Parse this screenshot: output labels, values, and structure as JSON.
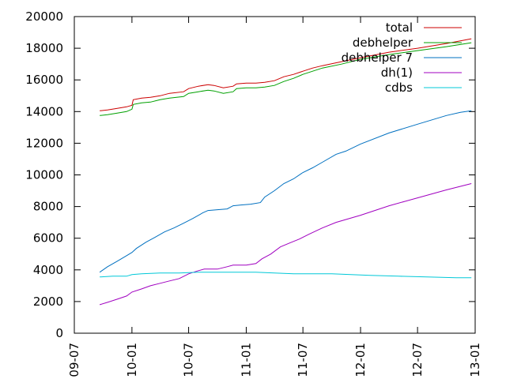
{
  "chart_data": {
    "type": "line",
    "title": "",
    "xlabel": "",
    "ylabel": "",
    "ylim": [
      0,
      20000
    ],
    "xlim": [
      "2009-07-01",
      "2013-01-01"
    ],
    "y_ticks": [
      0,
      2000,
      4000,
      6000,
      8000,
      10000,
      12000,
      14000,
      16000,
      18000,
      20000
    ],
    "x_ticks": [
      {
        "label": "09-07",
        "date": "2009-07-01"
      },
      {
        "label": "10-01",
        "date": "2010-01-01"
      },
      {
        "label": "10-07",
        "date": "2010-07-01"
      },
      {
        "label": "11-01",
        "date": "2011-01-01"
      },
      {
        "label": "11-07",
        "date": "2011-07-01"
      },
      {
        "label": "12-01",
        "date": "2012-01-01"
      },
      {
        "label": "12-07",
        "date": "2012-07-01"
      },
      {
        "label": "13-01",
        "date": "2013-01-01"
      }
    ],
    "grid": false,
    "legend_position": "top-right",
    "series": [
      {
        "name": "total",
        "color": "#cc0000",
        "points": [
          [
            "2009-09-20",
            14050
          ],
          [
            "2009-10-15",
            14100
          ],
          [
            "2009-11-15",
            14200
          ],
          [
            "2009-12-15",
            14300
          ],
          [
            "2010-01-01",
            14400
          ],
          [
            "2010-01-05",
            14750
          ],
          [
            "2010-02-01",
            14850
          ],
          [
            "2010-03-01",
            14900
          ],
          [
            "2010-04-01",
            15000
          ],
          [
            "2010-05-01",
            15150
          ],
          [
            "2010-06-15",
            15250
          ],
          [
            "2010-07-01",
            15450
          ],
          [
            "2010-08-01",
            15600
          ],
          [
            "2010-09-01",
            15700
          ],
          [
            "2010-09-20",
            15650
          ],
          [
            "2010-10-20",
            15500
          ],
          [
            "2010-11-20",
            15600
          ],
          [
            "2010-12-01",
            15750
          ],
          [
            "2011-01-01",
            15800
          ],
          [
            "2011-02-01",
            15800
          ],
          [
            "2011-03-01",
            15850
          ],
          [
            "2011-04-01",
            15950
          ],
          [
            "2011-05-01",
            16200
          ],
          [
            "2011-06-01",
            16350
          ],
          [
            "2011-07-01",
            16550
          ],
          [
            "2011-08-01",
            16750
          ],
          [
            "2011-09-01",
            16900
          ],
          [
            "2011-11-01",
            17150
          ],
          [
            "2012-01-01",
            17400
          ],
          [
            "2012-04-01",
            17750
          ],
          [
            "2012-07-01",
            18000
          ],
          [
            "2012-10-01",
            18300
          ],
          [
            "2012-12-20",
            18600
          ]
        ]
      },
      {
        "name": "debhelper",
        "color": "#00a000",
        "points": [
          [
            "2009-09-20",
            13750
          ],
          [
            "2009-10-15",
            13800
          ],
          [
            "2009-11-15",
            13900
          ],
          [
            "2009-12-15",
            14000
          ],
          [
            "2010-01-01",
            14150
          ],
          [
            "2010-01-05",
            14450
          ],
          [
            "2010-02-01",
            14550
          ],
          [
            "2010-03-01",
            14600
          ],
          [
            "2010-04-01",
            14750
          ],
          [
            "2010-05-01",
            14850
          ],
          [
            "2010-06-15",
            14950
          ],
          [
            "2010-07-01",
            15150
          ],
          [
            "2010-08-01",
            15250
          ],
          [
            "2010-09-01",
            15350
          ],
          [
            "2010-09-20",
            15300
          ],
          [
            "2010-10-20",
            15150
          ],
          [
            "2010-11-20",
            15250
          ],
          [
            "2010-12-01",
            15450
          ],
          [
            "2011-01-01",
            15500
          ],
          [
            "2011-02-01",
            15500
          ],
          [
            "2011-03-01",
            15550
          ],
          [
            "2011-04-01",
            15650
          ],
          [
            "2011-05-01",
            15900
          ],
          [
            "2011-06-01",
            16100
          ],
          [
            "2011-07-01",
            16350
          ],
          [
            "2011-08-01",
            16550
          ],
          [
            "2011-09-01",
            16750
          ],
          [
            "2011-11-01",
            17000
          ],
          [
            "2012-01-01",
            17300
          ],
          [
            "2012-04-01",
            17600
          ],
          [
            "2012-07-01",
            17850
          ],
          [
            "2012-10-01",
            18100
          ],
          [
            "2012-12-20",
            18350
          ]
        ]
      },
      {
        "name": "debhelper 7",
        "color": "#0070c0",
        "points": [
          [
            "2009-09-20",
            3850
          ],
          [
            "2009-10-15",
            4200
          ],
          [
            "2009-11-15",
            4550
          ],
          [
            "2009-12-15",
            4900
          ],
          [
            "2010-01-01",
            5100
          ],
          [
            "2010-01-15",
            5350
          ],
          [
            "2010-02-15",
            5750
          ],
          [
            "2010-03-15",
            6050
          ],
          [
            "2010-04-15",
            6400
          ],
          [
            "2010-05-15",
            6650
          ],
          [
            "2010-06-15",
            6950
          ],
          [
            "2010-07-15",
            7250
          ],
          [
            "2010-08-15",
            7600
          ],
          [
            "2010-09-01",
            7750
          ],
          [
            "2010-10-01",
            7800
          ],
          [
            "2010-11-01",
            7850
          ],
          [
            "2010-11-20",
            8050
          ],
          [
            "2010-12-15",
            8100
          ],
          [
            "2011-01-15",
            8150
          ],
          [
            "2011-02-15",
            8250
          ],
          [
            "2011-03-01",
            8600
          ],
          [
            "2011-04-01",
            9000
          ],
          [
            "2011-05-01",
            9450
          ],
          [
            "2011-06-01",
            9750
          ],
          [
            "2011-07-01",
            10150
          ],
          [
            "2011-08-01",
            10450
          ],
          [
            "2011-09-01",
            10800
          ],
          [
            "2011-10-15",
            11300
          ],
          [
            "2011-11-15",
            11500
          ],
          [
            "2012-01-01",
            11950
          ],
          [
            "2012-04-01",
            12650
          ],
          [
            "2012-07-01",
            13200
          ],
          [
            "2012-10-01",
            13750
          ],
          [
            "2012-11-15",
            13950
          ],
          [
            "2012-12-20",
            14050
          ]
        ]
      },
      {
        "name": "dh(1)",
        "color": "#a000c0",
        "points": [
          [
            "2009-09-20",
            1800
          ],
          [
            "2009-10-15",
            1950
          ],
          [
            "2009-11-15",
            2150
          ],
          [
            "2009-12-15",
            2350
          ],
          [
            "2010-01-01",
            2600
          ],
          [
            "2010-02-01",
            2800
          ],
          [
            "2010-03-01",
            3000
          ],
          [
            "2010-04-01",
            3150
          ],
          [
            "2010-05-01",
            3300
          ],
          [
            "2010-06-01",
            3450
          ],
          [
            "2010-07-01",
            3750
          ],
          [
            "2010-08-01",
            3950
          ],
          [
            "2010-08-20",
            4050
          ],
          [
            "2010-10-01",
            4050
          ],
          [
            "2010-11-01",
            4200
          ],
          [
            "2010-11-20",
            4300
          ],
          [
            "2011-01-01",
            4300
          ],
          [
            "2011-02-01",
            4400
          ],
          [
            "2011-02-20",
            4700
          ],
          [
            "2011-03-20",
            5000
          ],
          [
            "2011-04-20",
            5450
          ],
          [
            "2011-05-20",
            5700
          ],
          [
            "2011-06-20",
            5950
          ],
          [
            "2011-07-20",
            6250
          ],
          [
            "2011-09-01",
            6650
          ],
          [
            "2011-10-15",
            7000
          ],
          [
            "2012-01-01",
            7450
          ],
          [
            "2012-04-01",
            8050
          ],
          [
            "2012-07-01",
            8550
          ],
          [
            "2012-10-01",
            9050
          ],
          [
            "2012-12-20",
            9450
          ]
        ]
      },
      {
        "name": "cdbs",
        "color": "#00c8d8",
        "points": [
          [
            "2009-09-20",
            3550
          ],
          [
            "2009-11-01",
            3600
          ],
          [
            "2009-12-15",
            3600
          ],
          [
            "2010-01-01",
            3700
          ],
          [
            "2010-02-01",
            3750
          ],
          [
            "2010-04-01",
            3800
          ],
          [
            "2010-06-01",
            3800
          ],
          [
            "2010-08-01",
            3850
          ],
          [
            "2010-10-01",
            3850
          ],
          [
            "2010-12-01",
            3850
          ],
          [
            "2011-02-01",
            3850
          ],
          [
            "2011-04-01",
            3800
          ],
          [
            "2011-06-01",
            3750
          ],
          [
            "2011-08-01",
            3750
          ],
          [
            "2011-10-01",
            3750
          ],
          [
            "2011-12-01",
            3700
          ],
          [
            "2012-02-01",
            3650
          ],
          [
            "2012-05-01",
            3600
          ],
          [
            "2012-08-01",
            3550
          ],
          [
            "2012-11-01",
            3500
          ],
          [
            "2012-12-20",
            3500
          ]
        ]
      }
    ]
  }
}
